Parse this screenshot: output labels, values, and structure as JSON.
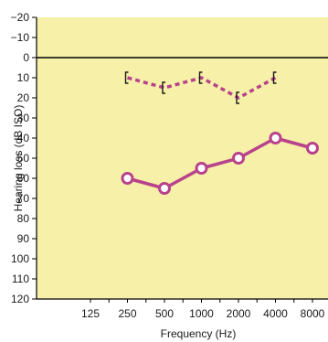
{
  "chart_data": {
    "type": "line",
    "title": "",
    "xlabel": "Frequency (Hz)",
    "ylabel": "Hearing loss (dB ISO)",
    "categories": [
      "125",
      "250",
      "500",
      "1000",
      "2000",
      "4000",
      "8000"
    ],
    "ylim": [
      -20,
      120
    ],
    "y_ticks": [
      -20,
      -10,
      0,
      10,
      20,
      30,
      40,
      50,
      60,
      70,
      80,
      90,
      100,
      110,
      120
    ],
    "y_inverted": true,
    "background_color": "#f6f0a8",
    "reference_line_y": 0,
    "series": [
      {
        "marker": "open-circle",
        "line_style": "solid",
        "color": "#b8428c",
        "values": [
          null,
          60,
          65,
          55,
          50,
          40,
          45
        ]
      },
      {
        "marker": "bracket",
        "line_style": "dashed",
        "color": "#b8428c",
        "values": [
          null,
          10,
          15,
          10,
          20,
          10,
          null
        ]
      }
    ]
  }
}
